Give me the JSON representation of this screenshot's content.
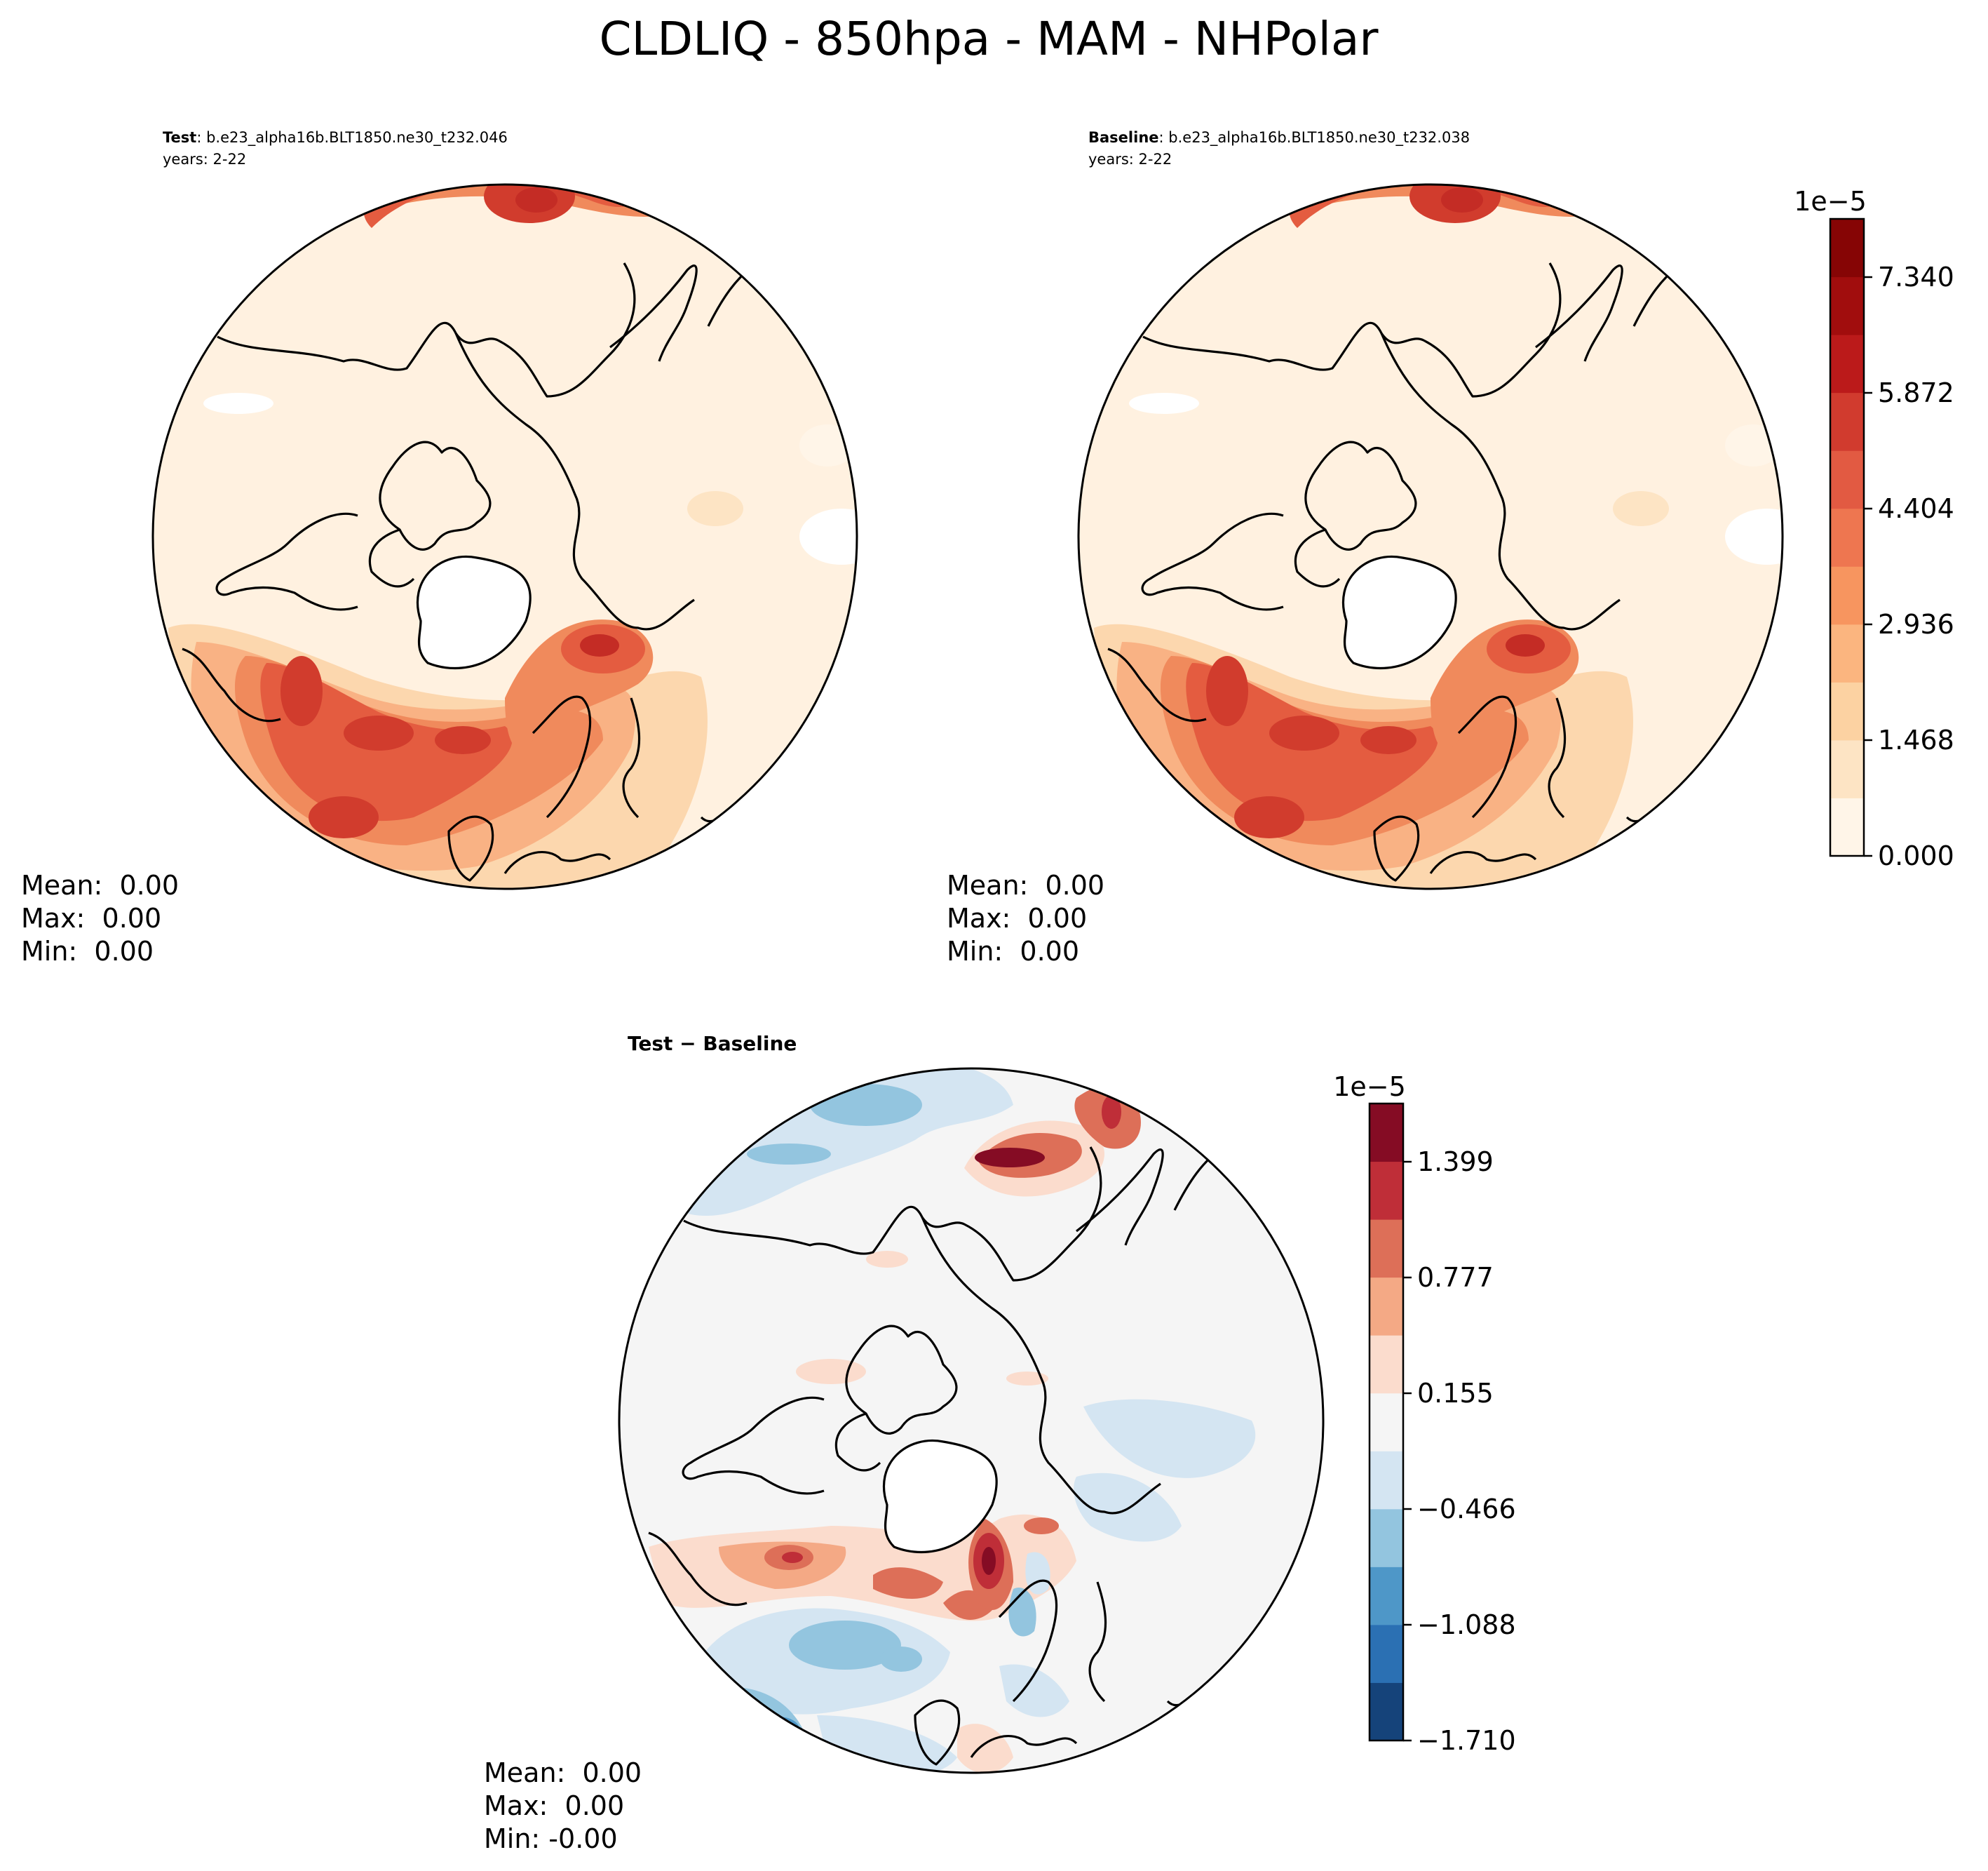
{
  "figure": {
    "title": "CLDLIQ - 850hpa - MAM - NHPolar"
  },
  "panels": [
    {
      "id": "test",
      "label_bold": "Test",
      "label_sep": ": ",
      "case_name": "b.e23_alpha16b.BLT1850.ne30_t232.046",
      "years": "years: 2-22",
      "stats": {
        "mean": "Mean:  0.00",
        "max": "Max:  0.00",
        "min": "Min:  0.00"
      }
    },
    {
      "id": "baseline",
      "label_bold": "Baseline",
      "label_sep": ": ",
      "case_name": "b.e23_alpha16b.BLT1850.ne30_t232.038",
      "years": "years: 2-22",
      "stats": {
        "mean": "Mean:  0.00",
        "max": "Max:  0.00",
        "min": "Min:  0.00"
      }
    },
    {
      "id": "diff",
      "label_bold": "Test − Baseline",
      "stats": {
        "mean": "Mean:  0.00",
        "max": "Max:  0.00",
        "min": "Min: -0.00"
      }
    }
  ],
  "colorbars": {
    "main": {
      "offset_label": "1e−5",
      "tick_labels": [
        "0.000",
        "1.468",
        "2.936",
        "4.404",
        "5.872",
        "7.340"
      ],
      "colors": [
        "#fff5e8",
        "#fde4c4",
        "#fcd2a2",
        "#fbb57f",
        "#f7955f",
        "#ee7650",
        "#e25a42",
        "#d13b2e",
        "#bb1a1a",
        "#a10d0d",
        "#860505"
      ]
    },
    "diff": {
      "offset_label": "1e−5",
      "tick_labels": [
        "−1.710",
        "−1.088",
        "−0.466",
        "0.155",
        "0.777",
        "1.399"
      ],
      "colors": [
        "#15437a",
        "#2b70b3",
        "#4e97c8",
        "#93c5df",
        "#d4e5f2",
        "#f5f5f5",
        "#fbdccd",
        "#f4a985",
        "#dd6f58",
        "#bf2e38",
        "#850c24"
      ]
    }
  }
}
